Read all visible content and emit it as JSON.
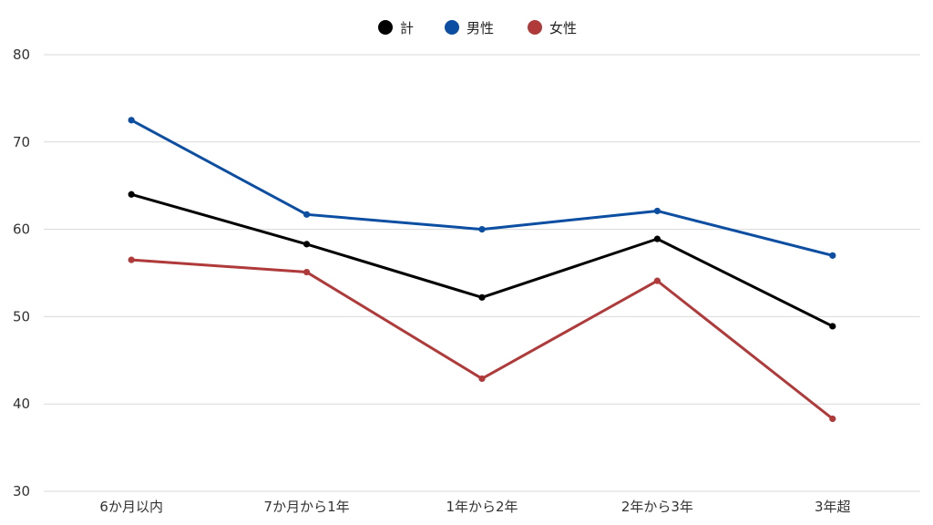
{
  "chart_data": {
    "type": "line",
    "categories": [
      "6か月以内",
      "7か月から1年",
      "1年から2年",
      "2年から3年",
      "3年超"
    ],
    "series": [
      {
        "name": "計",
        "color": "#000000",
        "values": [
          64.0,
          58.3,
          52.2,
          58.9,
          48.9
        ]
      },
      {
        "name": "男性",
        "color": "#0b4ea2",
        "values": [
          72.5,
          61.7,
          60.0,
          62.1,
          57.0
        ]
      },
      {
        "name": "女性",
        "color": "#b03a3a",
        "values": [
          56.5,
          55.1,
          42.9,
          54.1,
          38.3
        ]
      }
    ],
    "yticks": [
      "30",
      "40",
      "50",
      "60",
      "70",
      "80"
    ],
    "ylim": [
      30,
      80
    ],
    "grid": true,
    "legend_position": "top-center",
    "title": "",
    "xlabel": "",
    "ylabel": ""
  }
}
